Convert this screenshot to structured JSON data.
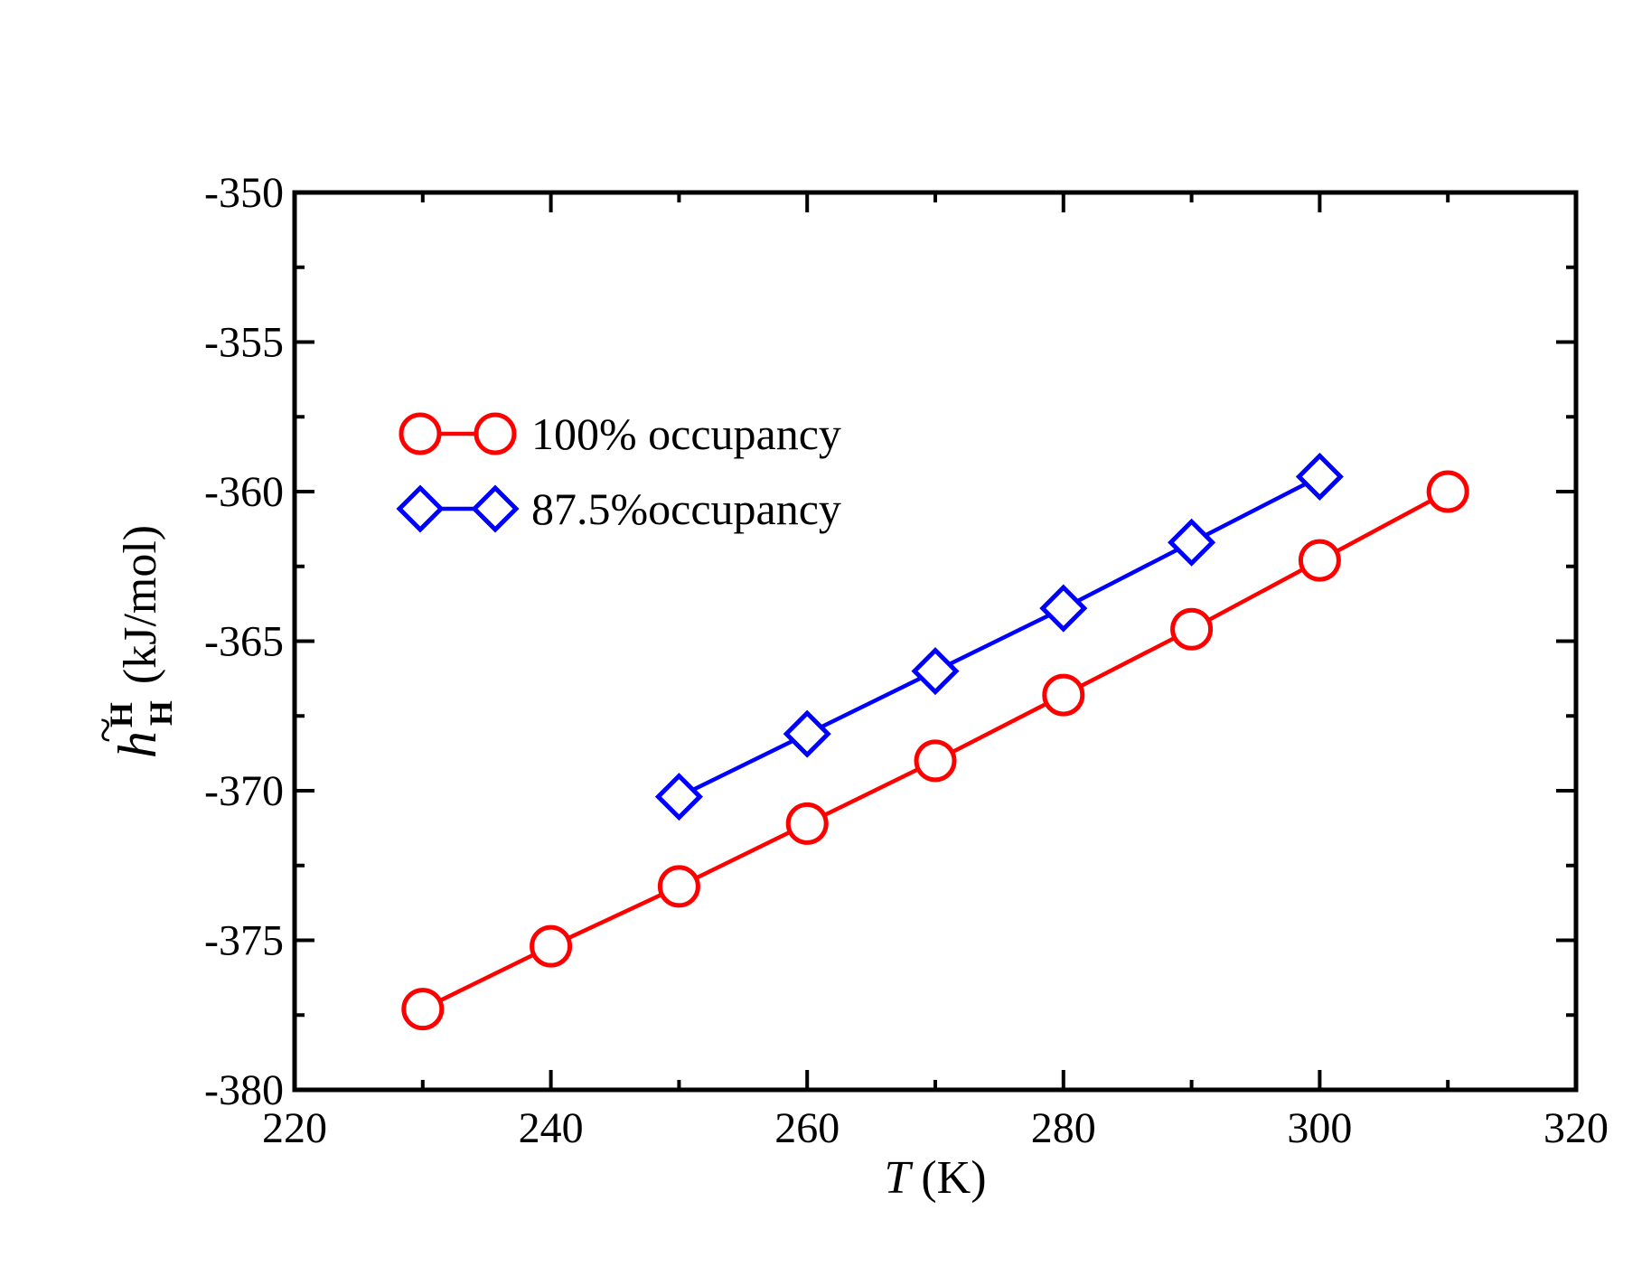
{
  "chart_data": {
    "type": "line",
    "title": "",
    "xlabel": {
      "symbol": "T",
      "unit": "(K)"
    },
    "ylabel": {
      "symbol": "h",
      "accent": "~",
      "superscript": "H",
      "subscript": "H",
      "unit": "(kJ/mol)"
    },
    "xlim": [
      220,
      320
    ],
    "ylim": [
      -380,
      -350
    ],
    "xticks": [
      220,
      240,
      260,
      280,
      300,
      320
    ],
    "xtick_labels": [
      "220",
      "240",
      "260",
      "280",
      "300",
      "320"
    ],
    "yticks": [
      -380,
      -375,
      -370,
      -365,
      -360,
      -355,
      -350
    ],
    "ytick_labels": [
      "-380",
      "-375",
      "-370",
      "-365",
      "-360",
      "-355",
      "-350"
    ],
    "x_minor_step": 10,
    "y_minor_step": 2.5,
    "grid": false,
    "legend_position": "upper-left",
    "series": [
      {
        "name": "100% occupancy",
        "color": "#ff0000",
        "marker": "circle",
        "x": [
          230,
          240,
          250,
          260,
          270,
          280,
          290,
          300,
          310
        ],
        "y": [
          -377.3,
          -375.2,
          -373.2,
          -371.1,
          -369.0,
          -366.8,
          -364.6,
          -362.3,
          -360.0
        ]
      },
      {
        "name": "87.5%occupancy",
        "color": "#0000ff",
        "marker": "diamond",
        "x": [
          250,
          260,
          270,
          280,
          290,
          300
        ],
        "y": [
          -370.2,
          -368.1,
          -366.0,
          -363.9,
          -361.7,
          -359.5
        ]
      }
    ]
  }
}
